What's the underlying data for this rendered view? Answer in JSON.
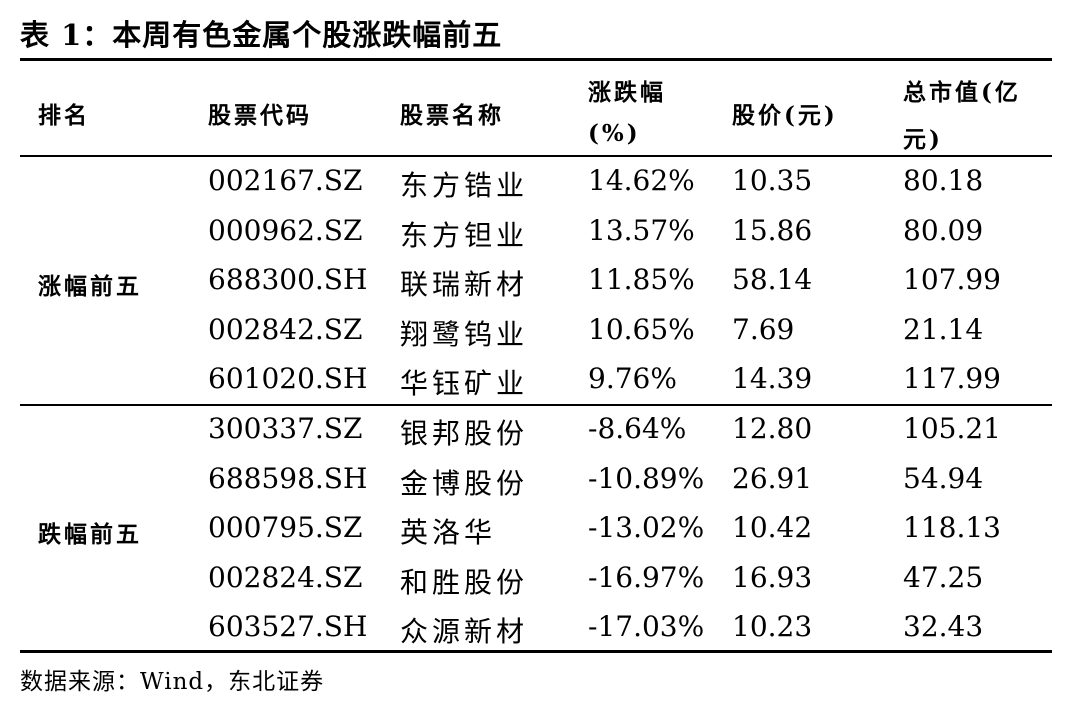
{
  "table_title": "表 1：本周有色金属个股涨跌幅前五",
  "headers": {
    "rank": "排名",
    "code": "股票代码",
    "name": "股票名称",
    "change_line1": "涨跌幅",
    "change_line2": "(%)",
    "price": "股价(元)",
    "mcap_line1": "总市值(亿",
    "mcap_line2": "元)"
  },
  "groups": [
    "涨幅前五",
    "跌幅前五"
  ],
  "rows": [
    {
      "code": "002167.SZ",
      "name": "东方锆业",
      "change": "14.62%",
      "price": "10.35",
      "mcap": "80.18"
    },
    {
      "code": "000962.SZ",
      "name": "东方钽业",
      "change": "13.57%",
      "price": "15.86",
      "mcap": "80.09"
    },
    {
      "code": "688300.SH",
      "name": "联瑞新材",
      "change": "11.85%",
      "price": "58.14",
      "mcap": "107.99"
    },
    {
      "code": "002842.SZ",
      "name": "翔鹭钨业",
      "change": "10.65%",
      "price": "7.69",
      "mcap": "21.14"
    },
    {
      "code": "601020.SH",
      "name": "华钰矿业",
      "change": "9.76%",
      "price": "14.39",
      "mcap": "117.99"
    },
    {
      "code": "300337.SZ",
      "name": "银邦股份",
      "change": "-8.64%",
      "price": "12.80",
      "mcap": "105.21"
    },
    {
      "code": "688598.SH",
      "name": "金博股份",
      "change": "-10.89%",
      "price": "26.91",
      "mcap": "54.94"
    },
    {
      "code": "000795.SZ",
      "name": "英洛华",
      "change": "-13.02%",
      "price": "10.42",
      "mcap": "118.13"
    },
    {
      "code": "002824.SZ",
      "name": "和胜股份",
      "change": "-16.97%",
      "price": "16.93",
      "mcap": "47.25"
    },
    {
      "code": "603527.SH",
      "name": "众源新材",
      "change": "-17.03%",
      "price": "10.23",
      "mcap": "32.43"
    }
  ],
  "source": "数据来源：Wind，东北证券"
}
